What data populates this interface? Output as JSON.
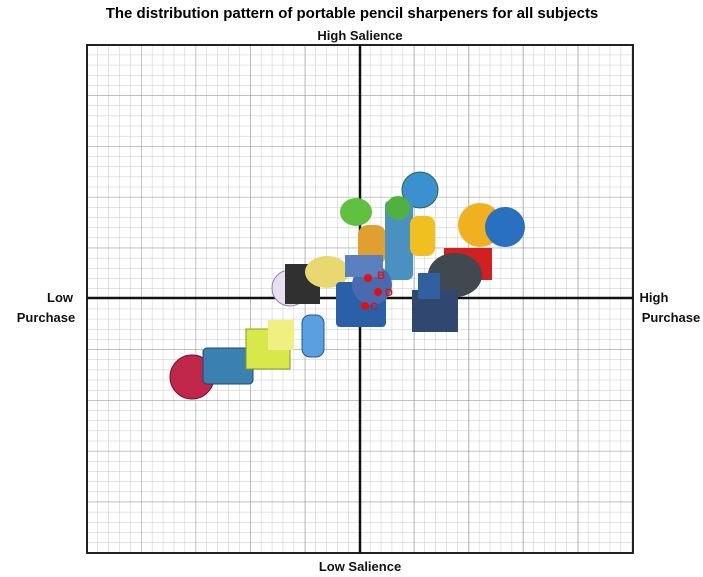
{
  "title": "The distribution pattern of portable pencil sharpeners for all subjects",
  "axis_labels": {
    "top": "High Salience",
    "bottom": "Low Salience",
    "left": [
      "Low",
      "Purchase"
    ],
    "right": [
      "High",
      "Purchase"
    ]
  },
  "point_labels": [
    "B",
    "D",
    "C"
  ]
}
